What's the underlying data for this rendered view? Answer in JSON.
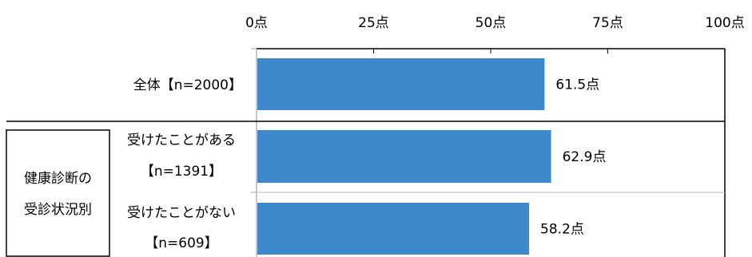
{
  "chart_data": {
    "type": "bar",
    "orientation": "horizontal",
    "title": "",
    "xlabel": "",
    "ylabel": "",
    "xlim": [
      0,
      100
    ],
    "x_ticks": [
      "0点",
      "25点",
      "50点",
      "75点",
      "100点"
    ],
    "x_tick_values": [
      0,
      25,
      50,
      75,
      100
    ],
    "categories": [
      [
        "全体【n=2000】"
      ],
      [
        "受けたことがある",
        "【n=1391】"
      ],
      [
        "受けたことがない",
        "【n=609】"
      ]
    ],
    "values": [
      61.5,
      62.9,
      58.2
    ],
    "data_labels": [
      "61.5点",
      "62.9点",
      "58.2点"
    ],
    "group_label": [
      "健康診断の",
      "受診状況別"
    ],
    "bar_color": "#3d89cc",
    "grid": false,
    "legend": "none"
  }
}
